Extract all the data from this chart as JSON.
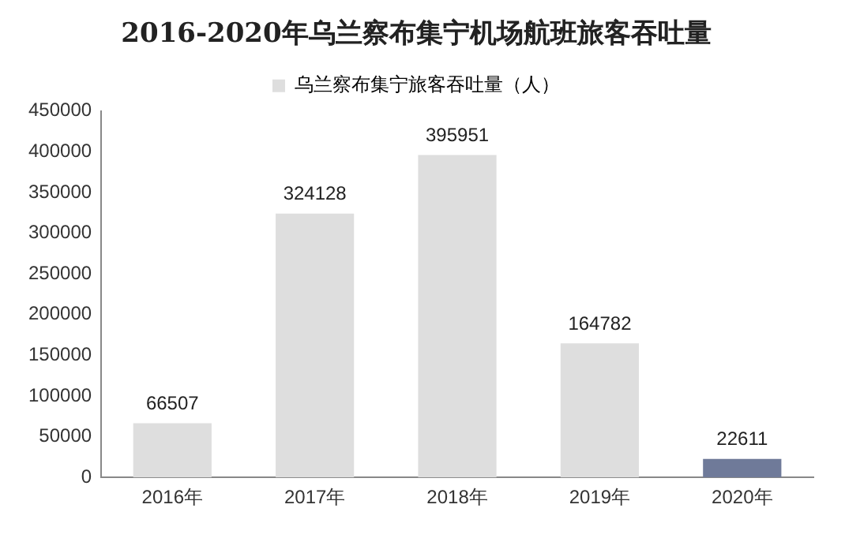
{
  "chart_data": {
    "type": "bar",
    "title": "2016-2020年乌兰察布集宁机场航班旅客吞吐量",
    "categories": [
      "2016年",
      "2017年",
      "2018年",
      "2019年",
      "2020年"
    ],
    "series": [
      {
        "name": "乌兰察布集宁旅客吞吐量（人）",
        "color": "#dedede",
        "colors": [
          "#dedede",
          "#dedede",
          "#dedede",
          "#dedede",
          "#6f7a99"
        ],
        "values": [
          66507,
          324128,
          395951,
          164782,
          22611
        ]
      }
    ],
    "ylim": [
      0,
      450000
    ],
    "yticks": [
      0,
      50000,
      100000,
      150000,
      200000,
      250000,
      300000,
      350000,
      400000,
      450000
    ],
    "data_labels": true,
    "legend": "top",
    "grid": false
  }
}
